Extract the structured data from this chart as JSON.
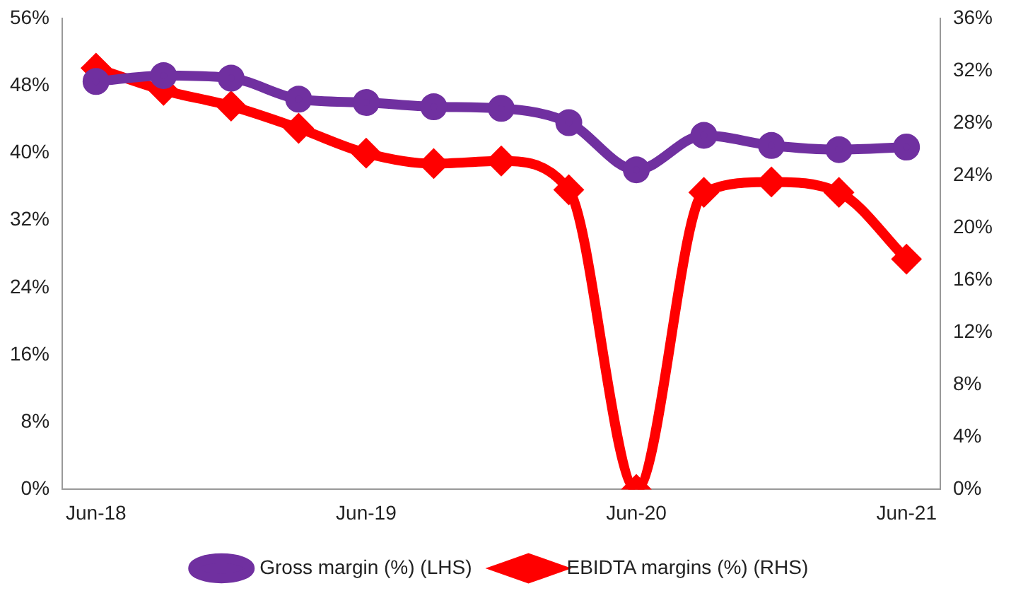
{
  "chart_data": {
    "type": "line",
    "categories": [
      "Jun-18",
      null,
      null,
      null,
      "Jun-19",
      null,
      null,
      null,
      "Jun-20",
      null,
      null,
      null,
      "Jun-21"
    ],
    "series": [
      {
        "name": "Gross margin (%) (LHS)",
        "color": "#7030a0",
        "marker": "circle",
        "values": [
          48.5,
          49.2,
          48.9,
          46.4,
          46.0,
          45.5,
          45.3,
          43.6,
          38.0,
          42.1,
          40.9,
          40.4,
          40.7
        ]
      },
      {
        "name": "EBIDTA margins (%) (RHS)",
        "color": "#ff0000",
        "marker": "diamond",
        "axis": "y2",
        "values": [
          32.2,
          30.5,
          29.3,
          27.6,
          25.7,
          24.9,
          25.1,
          22.9,
          0,
          22.7,
          23.5,
          22.7,
          17.6
        ]
      }
    ],
    "ylim": [
      0,
      56
    ],
    "yticks": [
      {
        "value": 0,
        "label": "0%"
      },
      {
        "value": 8,
        "label": "8%"
      },
      {
        "value": 16,
        "label": "16%"
      },
      {
        "value": 24,
        "label": "24%"
      },
      {
        "value": 32,
        "label": "32%"
      },
      {
        "value": 40,
        "label": "40%"
      },
      {
        "value": 48,
        "label": "48%"
      },
      {
        "value": 56,
        "label": "56%"
      }
    ],
    "y2lim": [
      0,
      36
    ],
    "y2ticks": [
      {
        "value": 0,
        "label": "0%"
      },
      {
        "value": 4,
        "label": "4%"
      },
      {
        "value": 8,
        "label": "8%"
      },
      {
        "value": 12,
        "label": "12%"
      },
      {
        "value": 16,
        "label": "16%"
      },
      {
        "value": 20,
        "label": "20%"
      },
      {
        "value": 24,
        "label": "24%"
      },
      {
        "value": 28,
        "label": "28%"
      },
      {
        "value": 32,
        "label": "32%"
      },
      {
        "value": 36,
        "label": "36%"
      }
    ],
    "grid": false,
    "legend": "bottom",
    "line_style": "solid"
  }
}
